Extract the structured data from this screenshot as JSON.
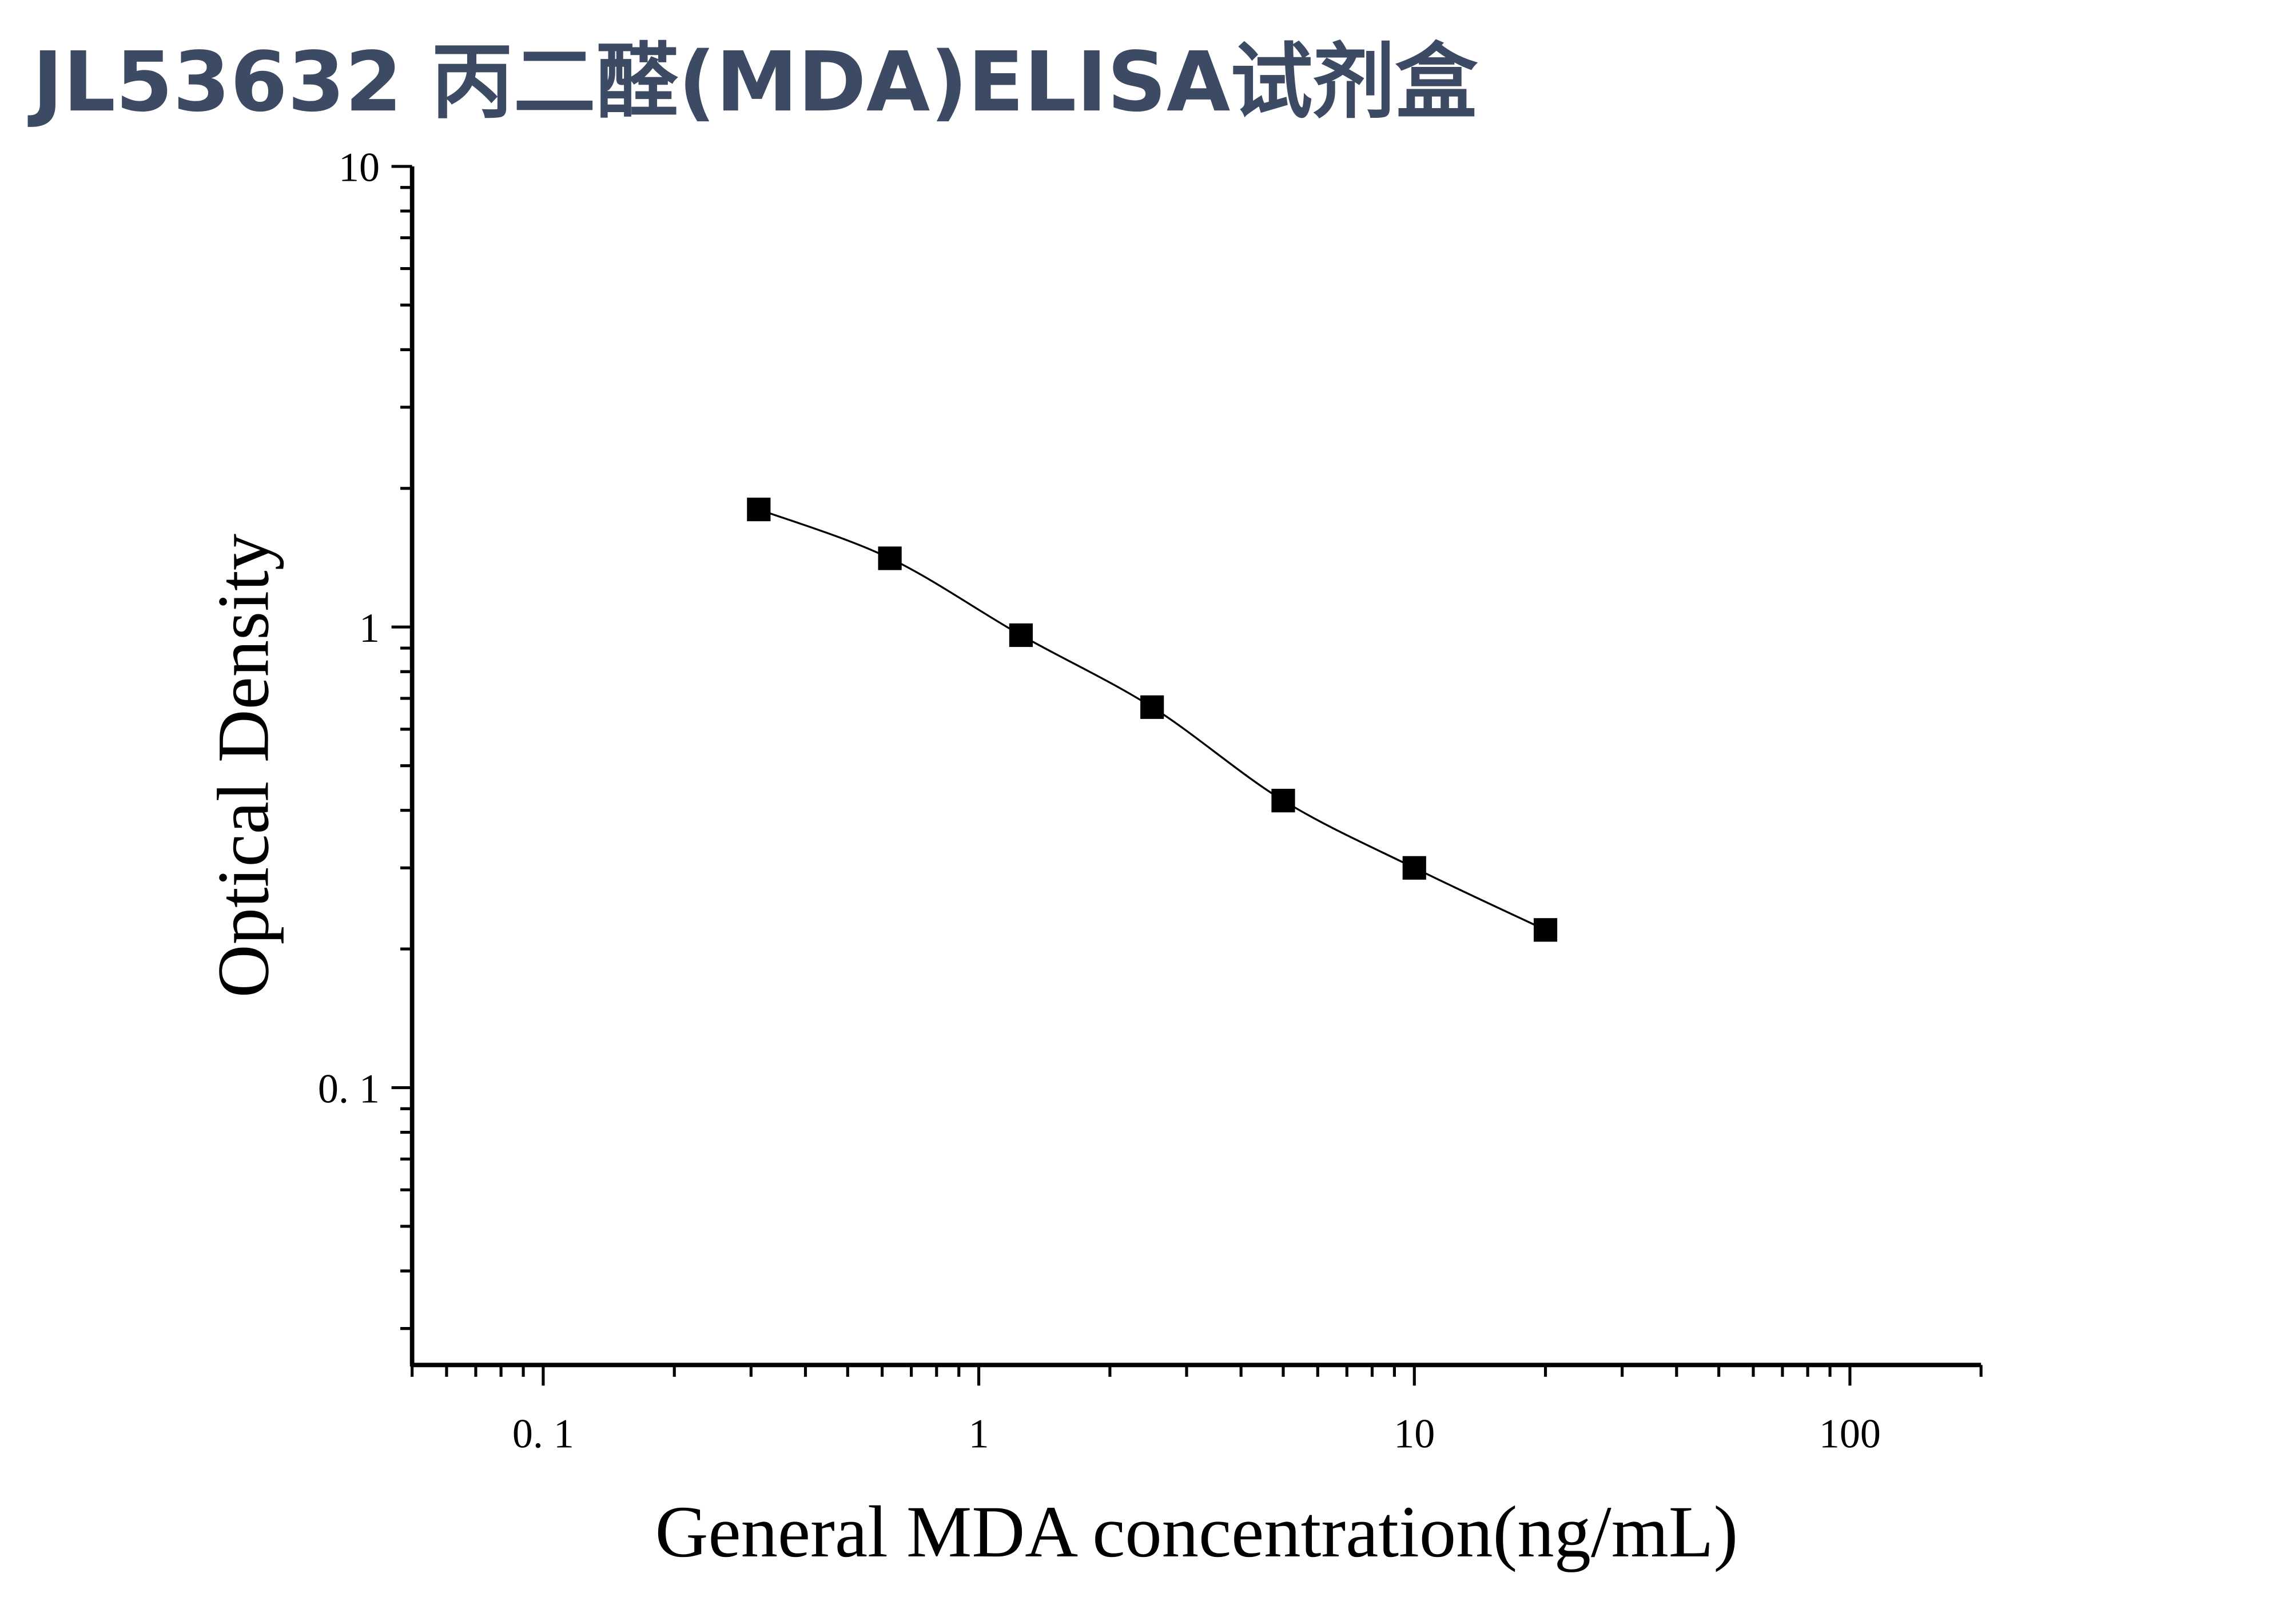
{
  "chart_data": {
    "type": "scatter",
    "title": "JL53632 丙二醛(MDA)ELISA试剂盒",
    "xlabel": "General MDA concentration(ng/mL)",
    "ylabel": "Optical Density",
    "x_scale": "log",
    "y_scale": "log",
    "xlim": [
      0.05,
      200
    ],
    "ylim": [
      0.025,
      10
    ],
    "x_tick_labels": [
      "0. 1",
      "1",
      "10",
      "100"
    ],
    "x_tick_values": [
      0.1,
      1,
      10,
      100
    ],
    "y_tick_labels": [
      "0. 1",
      "1",
      "10"
    ],
    "y_tick_values": [
      0.1,
      1,
      10
    ],
    "grid": false,
    "marker": "square",
    "fit_curve": true,
    "colors": {
      "title": "#3d4a63",
      "marks": "#000000"
    },
    "series": [
      {
        "x": [
          0.3125,
          0.625,
          1.25,
          2.5,
          5,
          10,
          20
        ],
        "y": [
          1.8,
          1.41,
          0.96,
          0.67,
          0.42,
          0.3,
          0.22
        ]
      }
    ]
  }
}
